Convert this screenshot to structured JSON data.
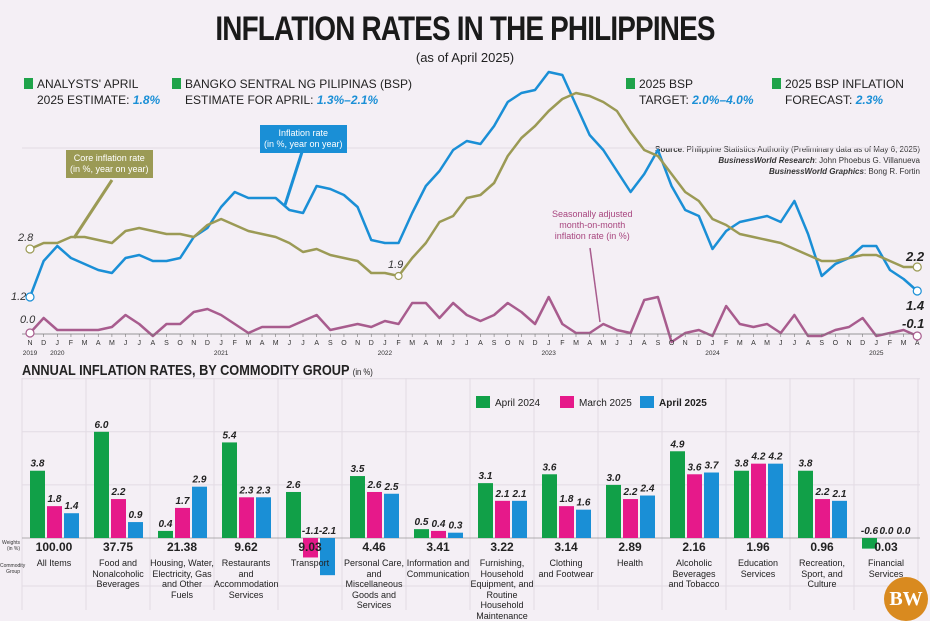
{
  "header": {
    "title": "INFLATION RATES IN THE PHILIPPINES",
    "subtitle": "(as of April 2025)"
  },
  "kpis": [
    {
      "line1": "ANALYSTS' APRIL",
      "line2": "2025 ESTIMATE:",
      "value": "1.8%"
    },
    {
      "line1": "BANGKO SENTRAL NG PILIPINAS (BSP)",
      "line2": "ESTIMATE FOR APRIL:",
      "value": "1.3%–2.1%"
    },
    {
      "line1": "2025 BSP",
      "line2": "TARGET:",
      "value": "2.0%–4.0%"
    },
    {
      "line1": "2025 BSP INFLATION",
      "line2": "FORECAST:",
      "value": "2.3%"
    }
  ],
  "source": {
    "l1k": "Source",
    "l1": ": Philippine Statistics Authority (Preliminary data as of May 6, 2025)",
    "l2k": "BusinessWorld Research",
    "l2": ": John Phoebus G. Villanueva",
    "l3k": "BusinessWorld Graphics",
    "l3": ": Bong R. Fortin"
  },
  "colors": {
    "headline": "#1a8fd6",
    "core": "#9b9a55",
    "mom": "#a85c8e",
    "april2024": "#11a048",
    "march2025": "#e6198a",
    "april2025": "#1a8fd6",
    "background": "#f4eff5",
    "logo": "#d98a1f"
  },
  "logo": "BW",
  "chart_data": [
    {
      "type": "line",
      "month_labels": [
        "N",
        "D",
        "J",
        "F",
        "M",
        "A",
        "M",
        "J",
        "J",
        "A",
        "S",
        "O",
        "N",
        "D",
        "J",
        "F",
        "M",
        "A",
        "M",
        "J",
        "J",
        "A",
        "S",
        "O",
        "N",
        "D",
        "J",
        "F",
        "M",
        "A",
        "M",
        "J",
        "J",
        "A",
        "S",
        "O",
        "N",
        "D",
        "J",
        "F",
        "M",
        "A",
        "M",
        "J",
        "J",
        "A",
        "S",
        "O",
        "N",
        "D",
        "J",
        "F",
        "M",
        "A",
        "M",
        "J",
        "J",
        "A",
        "S",
        "O",
        "N",
        "D",
        "J",
        "F",
        "M",
        "A"
      ],
      "year_labels": [
        {
          "index": 0,
          "label": "2019"
        },
        {
          "index": 2,
          "label": "2020"
        },
        {
          "index": 14,
          "label": "2021"
        },
        {
          "index": 26,
          "label": "2022"
        },
        {
          "index": 38,
          "label": "2023"
        },
        {
          "index": 50,
          "label": "2024"
        },
        {
          "index": 62,
          "label": "2025"
        }
      ],
      "series": [
        {
          "key": "headline",
          "name": "Inflation rate (in %, year on year)",
          "values": [
            1.2,
            2.4,
            2.9,
            2.5,
            2.3,
            2.1,
            2.0,
            2.5,
            2.6,
            2.4,
            2.4,
            2.5,
            3.2,
            3.5,
            4.2,
            4.7,
            4.5,
            4.5,
            4.5,
            4.1,
            4.0,
            4.9,
            4.8,
            4.6,
            4.2,
            3.1,
            3.0,
            3.0,
            4.0,
            4.9,
            5.4,
            6.1,
            6.4,
            6.3,
            6.9,
            7.7,
            8.0,
            8.1,
            8.7,
            8.6,
            7.6,
            6.6,
            6.1,
            5.4,
            4.7,
            5.3,
            6.1,
            4.9,
            4.1,
            3.9,
            2.8,
            3.4,
            3.7,
            3.8,
            3.9,
            3.7,
            4.4,
            3.3,
            1.9,
            2.3,
            2.5,
            2.9,
            2.9,
            2.1,
            1.8,
            1.4
          ]
        },
        {
          "key": "core",
          "name": "Core inflation rate (in %, year on year)",
          "values": [
            2.8,
            3.0,
            3.0,
            3.2,
            3.2,
            3.1,
            3.0,
            3.4,
            3.5,
            3.4,
            3.3,
            3.3,
            3.2,
            3.6,
            3.8,
            3.6,
            3.4,
            3.3,
            3.2,
            3.0,
            2.7,
            2.8,
            2.6,
            2.5,
            2.4,
            2.0,
            2.0,
            1.9,
            2.5,
            3.0,
            3.7,
            3.9,
            4.5,
            4.6,
            5.0,
            5.9,
            6.5,
            6.9,
            7.4,
            7.8,
            8.0,
            7.9,
            7.7,
            7.4,
            6.7,
            6.1,
            5.9,
            5.3,
            4.7,
            4.4,
            3.8,
            3.6,
            3.3,
            3.2,
            3.1,
            3.0,
            2.8,
            2.6,
            2.4,
            2.4,
            2.5,
            2.6,
            2.6,
            2.4,
            2.2,
            2.2
          ]
        },
        {
          "key": "mom",
          "name": "Seasonally adjusted month-on-month inflation rate (in %)",
          "values": [
            0.0,
            0.5,
            0.1,
            0.1,
            0.1,
            0.1,
            0.2,
            0.6,
            0.3,
            -0.1,
            0.3,
            0.3,
            0.7,
            0.8,
            0.6,
            0.3,
            0.0,
            0.2,
            0.2,
            0.2,
            0.4,
            0.6,
            0.1,
            0.2,
            0.3,
            0.2,
            0.4,
            0.3,
            1.0,
            1.0,
            0.5,
            1.0,
            0.6,
            0.4,
            0.6,
            1.0,
            0.7,
            0.3,
            1.2,
            0.3,
            0.0,
            0.0,
            0.3,
            0.1,
            0.0,
            1.1,
            1.2,
            -0.3,
            0.0,
            0.1,
            -0.1,
            0.9,
            0.3,
            0.2,
            0.3,
            0.0,
            0.6,
            -0.1,
            -0.1,
            0.1,
            0.2,
            0.5,
            -0.1,
            0.0,
            0.1,
            -0.1
          ]
        }
      ],
      "annotations": {
        "core_start": "2.8",
        "headline_start": "1.2",
        "core_low": "1.9",
        "core_end": "2.2",
        "headline_end": "1.4",
        "mom_start": "0.0",
        "mom_end": "-0.1"
      },
      "callouts": {
        "core": [
          "Core inflation rate",
          "(in %, year on year)"
        ],
        "headline": [
          "Inflation rate",
          "(in %, year on year)"
        ],
        "mom": [
          "Seasonally adjusted",
          "month-on-month",
          "inflation rate (in %)"
        ]
      }
    },
    {
      "type": "bar",
      "title": "ANNUAL INFLATION RATES, BY COMMODITY GROUP",
      "title_unit": "(in %)",
      "row_labels": {
        "weights": [
          "Weights",
          "(in %)"
        ],
        "group": [
          "Commodity",
          "Group"
        ]
      },
      "series_names": [
        "April 2024",
        "March 2025",
        "April 2025"
      ],
      "categories": [
        {
          "label": [
            "All Items"
          ],
          "weight": "100.00",
          "values": [
            3.8,
            1.8,
            1.4
          ]
        },
        {
          "label": [
            "Food and",
            "Nonalcoholic",
            "Beverages"
          ],
          "weight": "37.75",
          "values": [
            6.0,
            2.2,
            0.9
          ]
        },
        {
          "label": [
            "Housing, Water,",
            "Electricity, Gas",
            "and Other Fuels"
          ],
          "weight": "21.38",
          "values": [
            0.4,
            1.7,
            2.9
          ]
        },
        {
          "label": [
            "Restaurants and",
            "Accommodation",
            "Services"
          ],
          "weight": "9.62",
          "values": [
            5.4,
            2.3,
            2.3
          ]
        },
        {
          "label": [
            "Transport"
          ],
          "weight": "9.03",
          "values": [
            2.6,
            -1.1,
            -2.1
          ]
        },
        {
          "label": [
            "Personal Care,",
            "and Miscellaneous",
            "Goods and",
            "Services"
          ],
          "weight": "4.46",
          "values": [
            3.5,
            2.6,
            2.5
          ]
        },
        {
          "label": [
            "Information and",
            "Communication"
          ],
          "weight": "3.41",
          "values": [
            0.5,
            0.4,
            0.3
          ]
        },
        {
          "label": [
            "Furnishing,",
            "Household",
            "Equipment, and",
            "Routine Household",
            "Maintenance"
          ],
          "weight": "3.22",
          "values": [
            3.1,
            2.1,
            2.1
          ]
        },
        {
          "label": [
            "Clothing",
            "and Footwear"
          ],
          "weight": "3.14",
          "values": [
            3.6,
            1.8,
            1.6
          ]
        },
        {
          "label": [
            "Health"
          ],
          "weight": "2.89",
          "values": [
            3.0,
            2.2,
            2.4
          ]
        },
        {
          "label": [
            "Alcoholic",
            "Beverages",
            "and Tobacco"
          ],
          "weight": "2.16",
          "values": [
            4.9,
            3.6,
            3.7
          ]
        },
        {
          "label": [
            "Education",
            "Services"
          ],
          "weight": "1.96",
          "values": [
            3.8,
            4.2,
            4.2
          ]
        },
        {
          "label": [
            "Recreation,",
            "Sport, and",
            "Culture"
          ],
          "weight": "0.96",
          "values": [
            3.8,
            2.2,
            2.1
          ]
        },
        {
          "label": [
            "Financial",
            "Services"
          ],
          "weight": "0.03",
          "values": [
            -0.6,
            0.0,
            0.0
          ]
        }
      ]
    }
  ]
}
